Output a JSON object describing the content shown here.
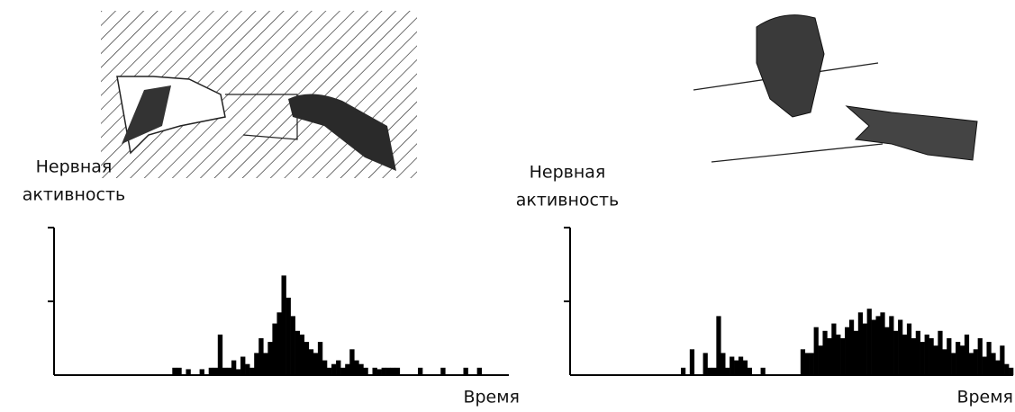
{
  "chart_data": [
    {
      "type": "bar",
      "ylabel": [
        "Нервная",
        "активность"
      ],
      "xlabel": "Время",
      "color": "#000000",
      "ylim": [
        0,
        2
      ],
      "yticks": [
        1,
        2
      ],
      "values": [
        0,
        0,
        0,
        0,
        0,
        0,
        0,
        0,
        0,
        0,
        0,
        0,
        0,
        0,
        0,
        0,
        0,
        0,
        0,
        0,
        0,
        0,
        0,
        0,
        0,
        0,
        0.1,
        0.1,
        0,
        0.08,
        0,
        0,
        0.08,
        0,
        0.1,
        0.1,
        0.55,
        0.1,
        0.1,
        0.2,
        0.08,
        0.25,
        0.15,
        0.1,
        0.3,
        0.5,
        0.3,
        0.45,
        0.7,
        0.85,
        1.35,
        1.05,
        0.8,
        0.6,
        0.55,
        0.45,
        0.35,
        0.3,
        0.45,
        0.2,
        0.1,
        0.15,
        0.2,
        0.1,
        0.15,
        0.35,
        0.2,
        0.15,
        0.1,
        0,
        0.1,
        0.08,
        0.1,
        0.1,
        0.1,
        0.1,
        0,
        0,
        0,
        0,
        0.1,
        0,
        0,
        0,
        0,
        0.1,
        0,
        0,
        0,
        0,
        0.1,
        0,
        0,
        0.1,
        0,
        0,
        0,
        0,
        0,
        0
      ]
    },
    {
      "type": "bar",
      "ylabel": [
        "Нервная",
        "активность"
      ],
      "xlabel": "Время",
      "color": "#000000",
      "ylim": [
        0,
        2
      ],
      "yticks": [
        1,
        2
      ],
      "values": [
        0,
        0,
        0,
        0,
        0,
        0,
        0,
        0,
        0,
        0,
        0,
        0,
        0,
        0,
        0,
        0,
        0,
        0,
        0,
        0,
        0,
        0,
        0,
        0,
        0,
        0.1,
        0,
        0.35,
        0,
        0,
        0.3,
        0.1,
        0.1,
        0.8,
        0.3,
        0.1,
        0.25,
        0.2,
        0.25,
        0.2,
        0.1,
        0,
        0,
        0.1,
        0,
        0,
        0,
        0,
        0,
        0,
        0,
        0,
        0.35,
        0.3,
        0.3,
        0.65,
        0.4,
        0.6,
        0.5,
        0.7,
        0.55,
        0.5,
        0.65,
        0.75,
        0.6,
        0.85,
        0.7,
        0.9,
        0.75,
        0.8,
        0.85,
        0.65,
        0.8,
        0.6,
        0.75,
        0.55,
        0.7,
        0.5,
        0.6,
        0.45,
        0.55,
        0.5,
        0.4,
        0.6,
        0.35,
        0.5,
        0.3,
        0.45,
        0.4,
        0.55,
        0.3,
        0.35,
        0.5,
        0.25,
        0.45,
        0.3,
        0.2,
        0.4,
        0.15,
        0.1
      ]
    }
  ]
}
